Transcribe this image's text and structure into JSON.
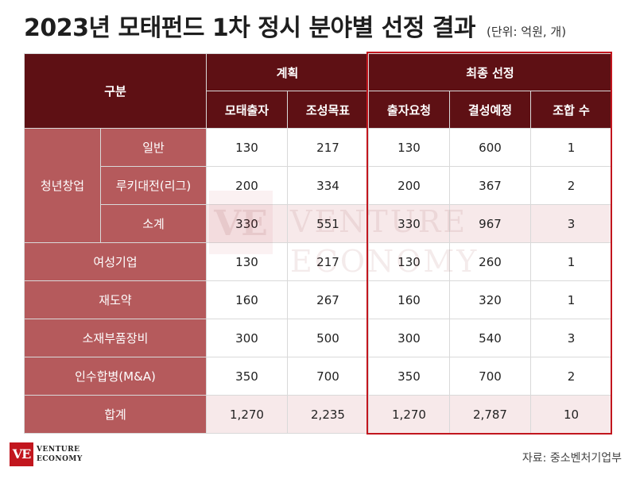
{
  "title": "2023년 모태펀드 1차 정시 분야별 선정 결과",
  "unit": "(단위: 억원, 개)",
  "headers": {
    "category": "구분",
    "plan": "계획",
    "final": "최종 선정",
    "columns": [
      "모태출자",
      "조성목표",
      "출자요청",
      "결성예정",
      "조합 수"
    ]
  },
  "chart_data": {
    "type": "table",
    "title": "2023년 모태펀드 1차 정시 분야별 선정 결과",
    "unit": "(단위: 억원, 개)",
    "column_groups": [
      {
        "name": "계획",
        "columns": [
          "모태출자",
          "조성목표"
        ]
      },
      {
        "name": "최종 선정",
        "columns": [
          "출자요청",
          "결성예정",
          "조합 수"
        ]
      }
    ],
    "rows": [
      {
        "group": "청년창업",
        "label": "일반",
        "values": [
          "130",
          "217",
          "130",
          "600",
          "1"
        ]
      },
      {
        "group": "청년창업",
        "label": "루키대전(리그)",
        "values": [
          "200",
          "334",
          "200",
          "367",
          "2"
        ]
      },
      {
        "group": "청년창업",
        "label": "소계",
        "values": [
          "330",
          "551",
          "330",
          "967",
          "3"
        ]
      },
      {
        "label": "여성기업",
        "values": [
          "130",
          "217",
          "130",
          "260",
          "1"
        ]
      },
      {
        "label": "재도약",
        "values": [
          "160",
          "267",
          "160",
          "320",
          "1"
        ]
      },
      {
        "label": "소재부품장비",
        "values": [
          "300",
          "500",
          "300",
          "540",
          "3"
        ]
      },
      {
        "label": "인수합병(M&A)",
        "values": [
          "350",
          "700",
          "350",
          "700",
          "2"
        ]
      },
      {
        "label": "합계",
        "values": [
          "1,270",
          "2,235",
          "1,270",
          "2,787",
          "10"
        ]
      }
    ]
  },
  "colors": {
    "header_bg": "#5e1014",
    "category_bg": "#b55a5c",
    "highlight_border": "#c2161e",
    "alt_row_bg": "#f7e9ea"
  },
  "watermark": {
    "line1": "VENTURE",
    "line2": "ECONOMY",
    "mark": "VE"
  },
  "logo": {
    "mark": "VE",
    "line1": "VENTURE",
    "line2": "ECONOMY"
  },
  "source": "자료: 중소벤처기업부"
}
